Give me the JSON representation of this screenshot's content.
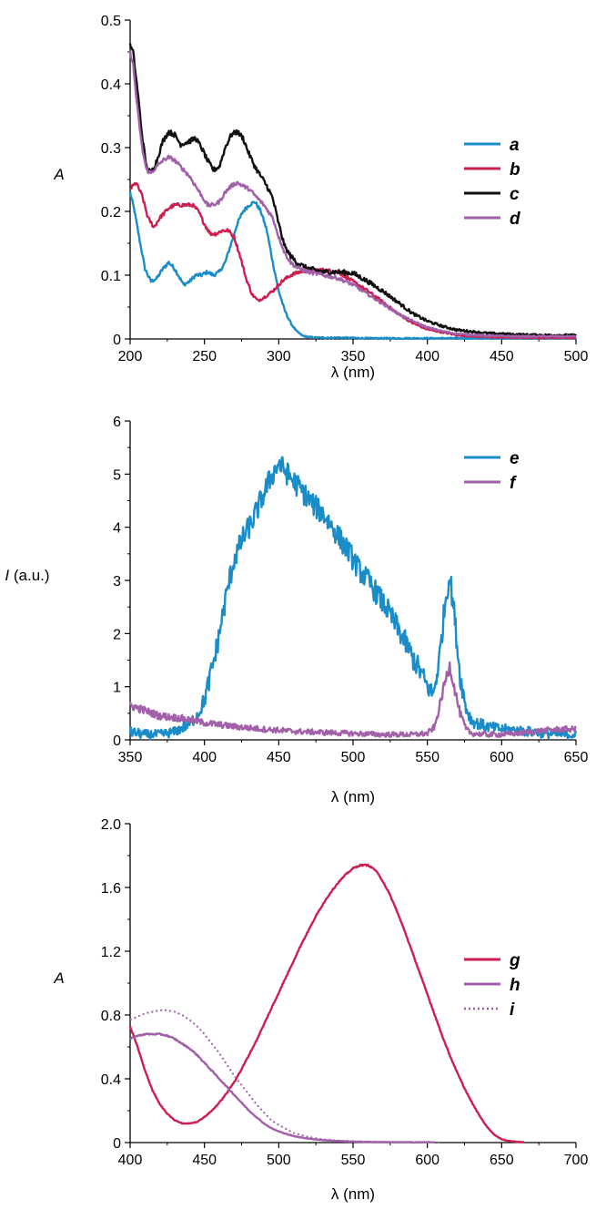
{
  "chart_data": [
    {
      "type": "line",
      "xlabel": "λ (nm)",
      "ylabel": "A",
      "ylabel_italic": true,
      "xlim": [
        200,
        500
      ],
      "ylim": [
        0,
        0.5
      ],
      "xticks": [
        "200",
        "250",
        "300",
        "350",
        "400",
        "450",
        "500"
      ],
      "yticks": [
        "0",
        "0.1",
        "0.2",
        "0.3",
        "0.4",
        "0.5"
      ],
      "legend_position": "right",
      "series": [
        {
          "name": "a",
          "color": "#1a8cc8",
          "dashed": false,
          "noise": 0.003,
          "x": [
            200,
            203,
            206,
            210,
            214,
            218,
            222,
            226,
            230,
            236,
            240,
            244,
            248,
            252,
            256,
            260,
            264,
            268,
            272,
            276,
            280,
            284,
            288,
            292,
            296,
            300,
            304,
            308,
            312,
            316,
            320,
            326,
            340,
            360,
            380,
            400,
            450,
            500
          ],
          "y": [
            0.23,
            0.2,
            0.16,
            0.11,
            0.09,
            0.095,
            0.11,
            0.12,
            0.11,
            0.085,
            0.09,
            0.1,
            0.1,
            0.105,
            0.1,
            0.105,
            0.12,
            0.15,
            0.18,
            0.2,
            0.21,
            0.215,
            0.2,
            0.17,
            0.12,
            0.075,
            0.045,
            0.025,
            0.012,
            0.005,
            0.003,
            0.002,
            0.002,
            0.001,
            0.001,
            0.001,
            0.001,
            0.001
          ]
        },
        {
          "name": "b",
          "color": "#cc1f4f",
          "dashed": false,
          "noise": 0.003,
          "x": [
            200,
            204,
            208,
            212,
            216,
            220,
            226,
            230,
            236,
            242,
            246,
            250,
            254,
            258,
            262,
            266,
            270,
            274,
            278,
            282,
            286,
            290,
            296,
            302,
            308,
            314,
            320,
            330,
            340,
            350,
            360,
            370,
            380,
            390,
            400,
            420,
            440,
            460,
            480,
            500
          ],
          "y": [
            0.235,
            0.245,
            0.225,
            0.19,
            0.175,
            0.19,
            0.205,
            0.21,
            0.21,
            0.21,
            0.2,
            0.18,
            0.165,
            0.165,
            0.17,
            0.17,
            0.16,
            0.13,
            0.095,
            0.07,
            0.06,
            0.065,
            0.075,
            0.09,
            0.1,
            0.105,
            0.108,
            0.108,
            0.105,
            0.09,
            0.075,
            0.058,
            0.04,
            0.025,
            0.015,
            0.006,
            0.003,
            0.002,
            0.002,
            0.002
          ]
        },
        {
          "name": "c",
          "color": "#111111",
          "dashed": false,
          "noise": 0.004,
          "x": [
            200,
            202,
            205,
            208,
            211,
            214,
            218,
            222,
            226,
            230,
            234,
            240,
            244,
            248,
            252,
            256,
            260,
            264,
            268,
            272,
            276,
            280,
            284,
            288,
            292,
            296,
            300,
            304,
            308,
            312,
            318,
            324,
            330,
            340,
            350,
            360,
            370,
            380,
            390,
            400,
            410,
            420,
            440,
            460,
            480,
            500
          ],
          "y": [
            0.46,
            0.45,
            0.39,
            0.32,
            0.27,
            0.26,
            0.28,
            0.31,
            0.325,
            0.32,
            0.305,
            0.31,
            0.315,
            0.3,
            0.28,
            0.265,
            0.27,
            0.3,
            0.32,
            0.325,
            0.315,
            0.29,
            0.27,
            0.255,
            0.24,
            0.22,
            0.18,
            0.145,
            0.13,
            0.12,
            0.112,
            0.108,
            0.105,
            0.105,
            0.103,
            0.09,
            0.075,
            0.058,
            0.04,
            0.028,
            0.02,
            0.014,
            0.009,
            0.007,
            0.006,
            0.006
          ]
        },
        {
          "name": "d",
          "color": "#a260aa",
          "dashed": false,
          "noise": 0.003,
          "x": [
            200,
            202,
            205,
            208,
            211,
            214,
            218,
            222,
            226,
            230,
            236,
            240,
            244,
            248,
            252,
            256,
            260,
            264,
            268,
            272,
            276,
            280,
            286,
            290,
            296,
            300,
            304,
            308,
            312,
            320,
            330,
            340,
            350,
            360,
            370,
            380,
            390,
            400,
            410,
            420,
            440,
            460,
            480,
            500
          ],
          "y": [
            0.45,
            0.43,
            0.36,
            0.3,
            0.265,
            0.26,
            0.27,
            0.28,
            0.285,
            0.28,
            0.265,
            0.255,
            0.24,
            0.225,
            0.21,
            0.21,
            0.215,
            0.23,
            0.24,
            0.245,
            0.24,
            0.235,
            0.22,
            0.21,
            0.19,
            0.16,
            0.135,
            0.12,
            0.112,
            0.105,
            0.1,
            0.095,
            0.085,
            0.07,
            0.055,
            0.04,
            0.028,
            0.018,
            0.012,
            0.008,
            0.005,
            0.004,
            0.004,
            0.004
          ]
        }
      ]
    },
    {
      "type": "line",
      "xlabel": "λ (nm)",
      "ylabel": "I (a.u.)",
      "ylabel_italic_part": "I",
      "ylabel_rest": " (a.u.)",
      "xlim": [
        350,
        650
      ],
      "ylim": [
        0,
        6
      ],
      "xticks": [
        "350",
        "400",
        "450",
        "500",
        "550",
        "600",
        "650"
      ],
      "yticks": [
        "0",
        "1",
        "2",
        "3",
        "4",
        "5",
        "6"
      ],
      "legend_position": "top-right",
      "series": [
        {
          "name": "e",
          "color": "#1a8cc8",
          "dashed": false,
          "noise": 0.22,
          "x": [
            350,
            360,
            370,
            380,
            390,
            396,
            400,
            404,
            408,
            412,
            416,
            420,
            426,
            432,
            438,
            444,
            450,
            456,
            462,
            468,
            474,
            480,
            486,
            492,
            498,
            504,
            510,
            516,
            522,
            528,
            534,
            540,
            546,
            550,
            554,
            558,
            562,
            565,
            568,
            572,
            576,
            580,
            590,
            600,
            610,
            620,
            630,
            640,
            650
          ],
          "y": [
            0.15,
            0.1,
            0.1,
            0.15,
            0.3,
            0.5,
            0.75,
            1.2,
            1.7,
            2.3,
            2.9,
            3.4,
            3.8,
            4.1,
            4.5,
            4.9,
            5.2,
            5.0,
            4.8,
            4.6,
            4.4,
            4.25,
            4.0,
            3.75,
            3.5,
            3.2,
            3.0,
            2.75,
            2.5,
            2.2,
            1.9,
            1.55,
            1.25,
            1.0,
            0.85,
            1.5,
            2.6,
            3.1,
            2.4,
            1.2,
            0.6,
            0.35,
            0.25,
            0.2,
            0.18,
            0.15,
            0.12,
            0.1,
            0.1
          ]
        },
        {
          "name": "f",
          "color": "#a260aa",
          "dashed": false,
          "noise": 0.12,
          "x": [
            350,
            360,
            370,
            380,
            390,
            400,
            420,
            440,
            460,
            480,
            500,
            520,
            540,
            550,
            555,
            558,
            562,
            565,
            568,
            572,
            576,
            580,
            590,
            600,
            610,
            620,
            630,
            640,
            650
          ],
          "y": [
            0.65,
            0.55,
            0.45,
            0.42,
            0.38,
            0.32,
            0.25,
            0.2,
            0.16,
            0.14,
            0.12,
            0.1,
            0.1,
            0.12,
            0.25,
            0.6,
            1.1,
            1.4,
            1.0,
            0.5,
            0.2,
            0.12,
            0.1,
            0.1,
            0.12,
            0.15,
            0.18,
            0.2,
            0.2
          ]
        }
      ]
    },
    {
      "type": "line",
      "xlabel": "λ (nm)",
      "ylabel": "A",
      "ylabel_italic": true,
      "xlim": [
        400,
        700
      ],
      "ylim": [
        0,
        2.0
      ],
      "xticks": [
        "400",
        "450",
        "500",
        "550",
        "600",
        "650",
        "700"
      ],
      "yticks": [
        "0",
        "0.4",
        "0.8",
        "1.2",
        "1.6",
        "2.0"
      ],
      "legend_position": "right",
      "series": [
        {
          "name": "g",
          "color": "#cc1f4f",
          "dashed": false,
          "noise": 0.004,
          "x": [
            400,
            405,
            410,
            415,
            420,
            425,
            430,
            435,
            440,
            445,
            450,
            455,
            460,
            465,
            470,
            475,
            480,
            485,
            490,
            495,
            500,
            505,
            510,
            515,
            520,
            525,
            530,
            535,
            540,
            545,
            550,
            555,
            560,
            565,
            570,
            575,
            580,
            585,
            590,
            595,
            600,
            605,
            610,
            615,
            620,
            625,
            630,
            635,
            640,
            645,
            650,
            655,
            660,
            665
          ],
          "y": [
            0.73,
            0.6,
            0.45,
            0.33,
            0.24,
            0.18,
            0.14,
            0.12,
            0.12,
            0.13,
            0.16,
            0.2,
            0.25,
            0.31,
            0.38,
            0.46,
            0.55,
            0.64,
            0.74,
            0.84,
            0.94,
            1.04,
            1.14,
            1.24,
            1.33,
            1.42,
            1.5,
            1.57,
            1.63,
            1.68,
            1.72,
            1.74,
            1.74,
            1.71,
            1.64,
            1.55,
            1.44,
            1.32,
            1.19,
            1.06,
            0.93,
            0.8,
            0.67,
            0.55,
            0.44,
            0.34,
            0.25,
            0.17,
            0.1,
            0.05,
            0.02,
            0.01,
            0.005,
            0.003
          ]
        },
        {
          "name": "h",
          "color": "#a260aa",
          "dashed": false,
          "noise": 0.004,
          "x": [
            400,
            405,
            410,
            415,
            420,
            425,
            430,
            435,
            440,
            445,
            450,
            455,
            460,
            465,
            470,
            475,
            480,
            485,
            490,
            495,
            500,
            510,
            520,
            530,
            540,
            550,
            560,
            580,
            600,
            605
          ],
          "y": [
            0.65,
            0.67,
            0.68,
            0.68,
            0.68,
            0.67,
            0.65,
            0.62,
            0.59,
            0.55,
            0.5,
            0.45,
            0.4,
            0.35,
            0.3,
            0.25,
            0.2,
            0.16,
            0.12,
            0.09,
            0.07,
            0.04,
            0.025,
            0.015,
            0.01,
            0.006,
            0.004,
            0.002,
            0.002,
            0.002
          ]
        },
        {
          "name": "i",
          "color": "#a260aa",
          "dashed": true,
          "noise": 0,
          "x": [
            400,
            405,
            410,
            415,
            420,
            425,
            430,
            435,
            440,
            445,
            450,
            455,
            460,
            465,
            470,
            475,
            480,
            485,
            490,
            495,
            500,
            510,
            520,
            530,
            540,
            550,
            560,
            580,
            600,
            610
          ],
          "y": [
            0.77,
            0.79,
            0.81,
            0.82,
            0.83,
            0.83,
            0.82,
            0.8,
            0.77,
            0.73,
            0.68,
            0.62,
            0.56,
            0.49,
            0.42,
            0.36,
            0.3,
            0.24,
            0.19,
            0.14,
            0.11,
            0.06,
            0.035,
            0.02,
            0.012,
            0.008,
            0.005,
            0.003,
            0.002,
            0.002
          ]
        }
      ]
    }
  ]
}
